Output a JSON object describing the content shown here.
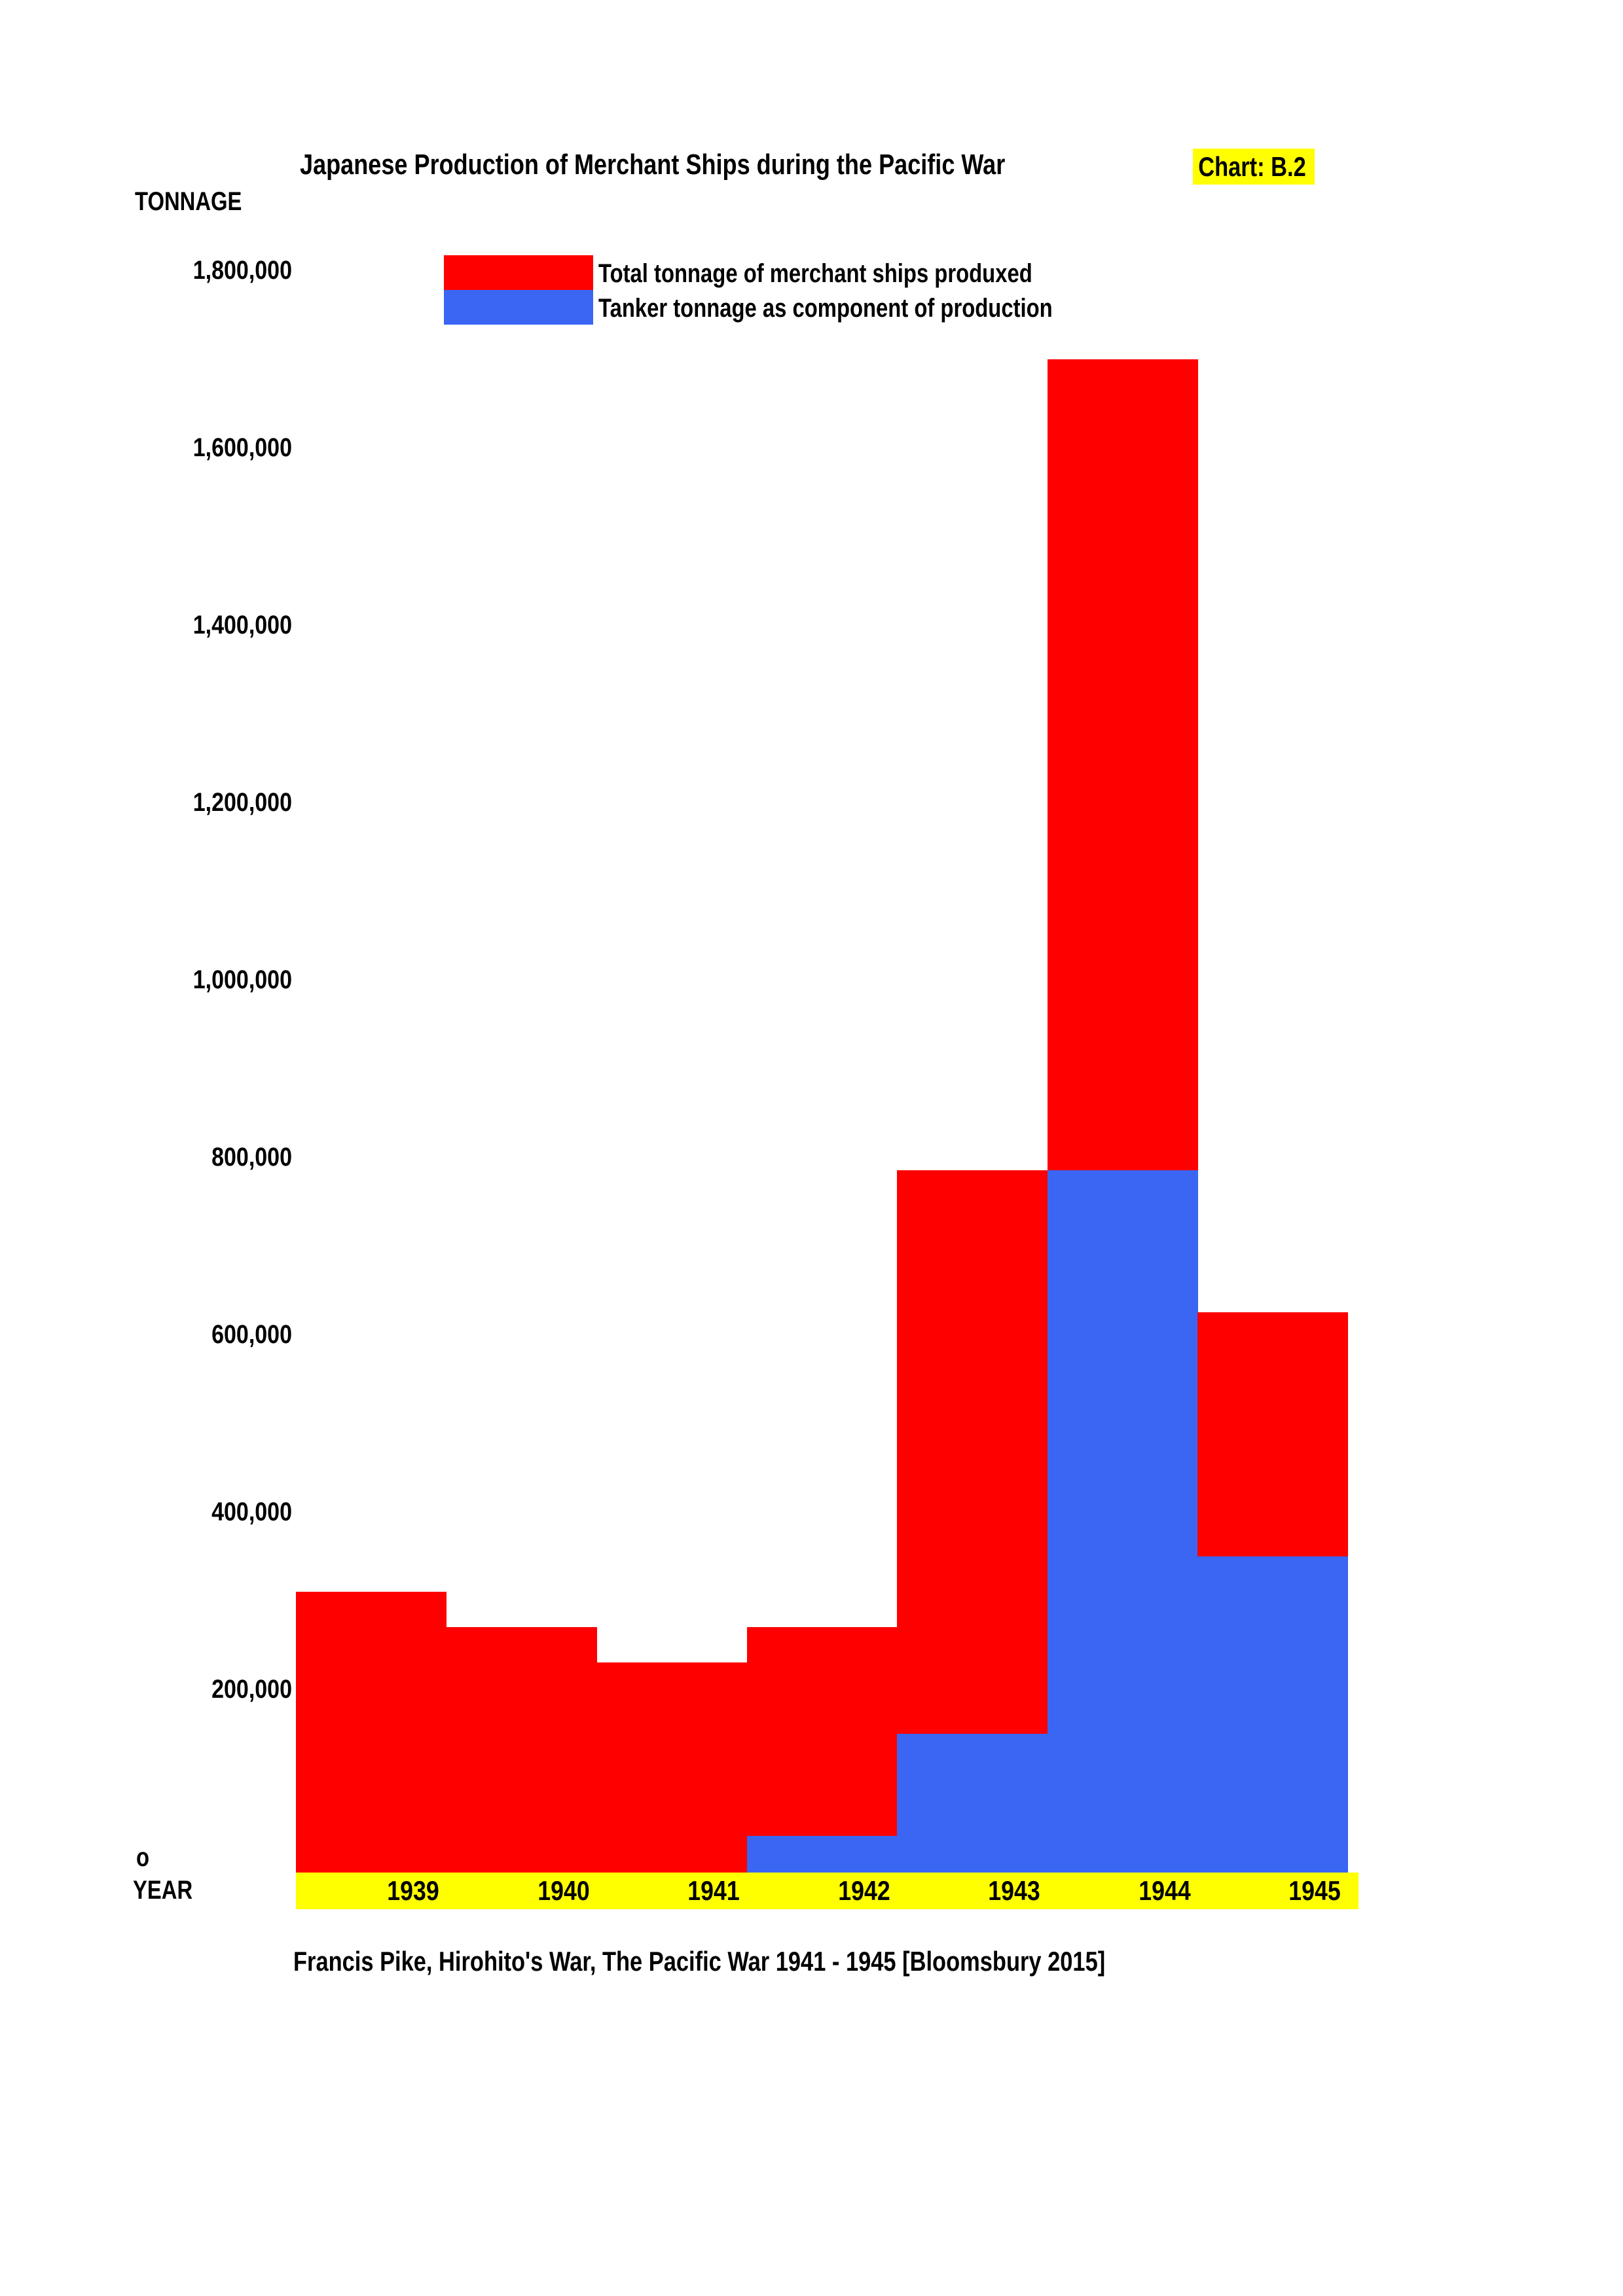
{
  "page": {
    "title": "Japanese Production of Merchant Ships during the Pacific War",
    "chart_label": "Chart: B.2",
    "source": "Francis Pike, Hirohito's War, The Pacific War 1941 - 1945 [Bloomsbury 2015]"
  },
  "axes": {
    "y_title": "TONNAGE",
    "x_title": "YEAR",
    "zero_label": "o"
  },
  "legend": [
    {
      "label": "Total tonnage of merchant ships produxed",
      "series": "total"
    },
    {
      "label": "Tanker tonnage as component of production",
      "series": "tanker"
    }
  ],
  "colors": {
    "total": "#ff0000",
    "tanker": "#3a66f3",
    "highlight": "#ffff00",
    "text": "#000000",
    "background": "#ffffff"
  },
  "chart_data": {
    "type": "bar",
    "subtype": "overlay-component-bars",
    "title": "Japanese Production of Merchant Ships during the Pacific War",
    "xlabel": "YEAR",
    "ylabel": "TONNAGE",
    "categories": [
      "1939",
      "1940",
      "1941",
      "1942",
      "1943",
      "1944",
      "1945"
    ],
    "series": [
      {
        "name": "Total tonnage of merchant ships produxed",
        "color_key": "total",
        "values": [
          310000,
          270000,
          230000,
          270000,
          785000,
          1700000,
          625000
        ]
      },
      {
        "name": "Tanker tonnage as component of production",
        "color_key": "tanker",
        "values": [
          0,
          0,
          0,
          35000,
          150000,
          785000,
          350000
        ]
      }
    ],
    "ylim": [
      0,
      1800000
    ],
    "y_tick_step": 200000,
    "y_ticks": [
      {
        "value": 1800000,
        "label": "1,800,000"
      },
      {
        "value": 1600000,
        "label": "1,600,000"
      },
      {
        "value": 1400000,
        "label": "1,400,000"
      },
      {
        "value": 1200000,
        "label": "1,200,000"
      },
      {
        "value": 1000000,
        "label": "1,000,000"
      },
      {
        "value": 800000,
        "label": "800,000"
      },
      {
        "value": 600000,
        "label": "600,000"
      },
      {
        "value": 400000,
        "label": "400,000"
      },
      {
        "value": 200000,
        "label": "200,000"
      },
      {
        "value": 0,
        "label": "o"
      }
    ],
    "grid": false,
    "legend_position": "inside-top-left"
  }
}
